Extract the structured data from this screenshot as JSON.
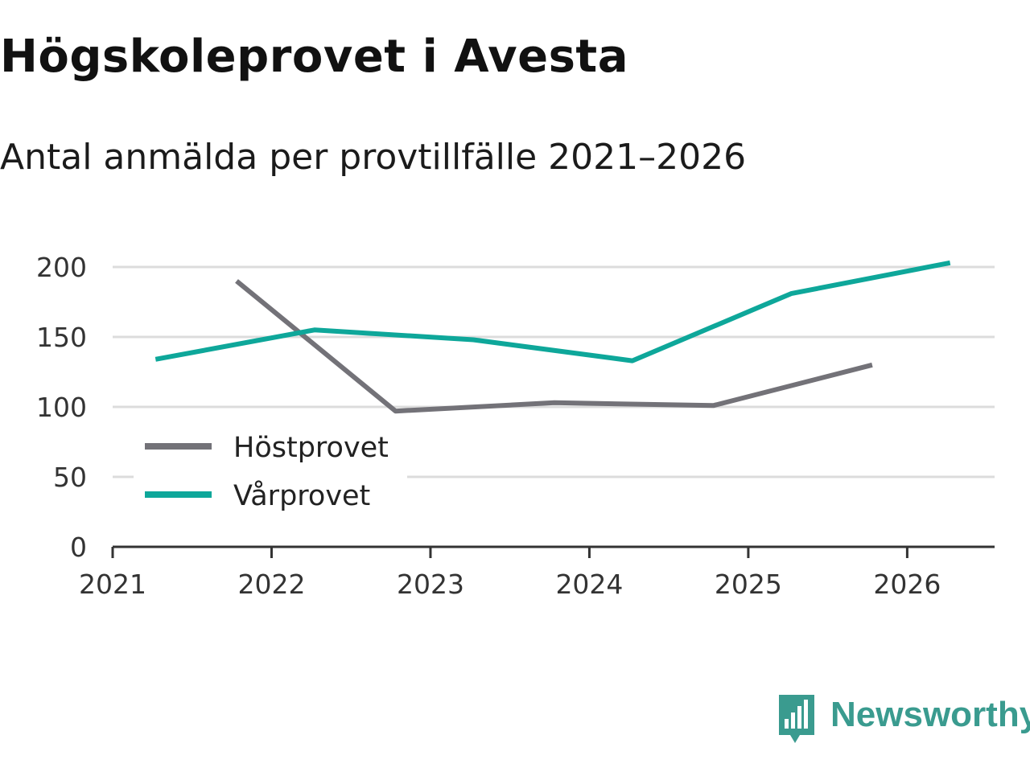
{
  "chart_data": {
    "type": "line",
    "title": "Högskoleprovet i Avesta",
    "subtitle": "Antal anmälda per provtillfälle 2021–2026",
    "xlabel": "",
    "ylabel": "",
    "xlim": [
      2021,
      2026.55
    ],
    "ylim": [
      0,
      200
    ],
    "x_ticks": [
      "2021",
      "2022",
      "2023",
      "2024",
      "2025",
      "2026"
    ],
    "y_ticks": [
      0,
      50,
      100,
      150,
      200
    ],
    "grid": true,
    "legend_position": "lower-left",
    "series": [
      {
        "name": "Höstprovet",
        "color": "#737278",
        "x": [
          2021.78,
          2022.78,
          2023.78,
          2024.78,
          2025.78
        ],
        "y": [
          190,
          97,
          103,
          101,
          130
        ]
      },
      {
        "name": "Vårprovet",
        "color": "#0ea79a",
        "x": [
          2021.27,
          2022.27,
          2023.27,
          2024.27,
          2025.27,
          2026.27
        ],
        "y": [
          134,
          155,
          148,
          133,
          181,
          203
        ]
      }
    ]
  },
  "branding": {
    "name": "Newsworthy",
    "color": "#3a9b8f"
  }
}
